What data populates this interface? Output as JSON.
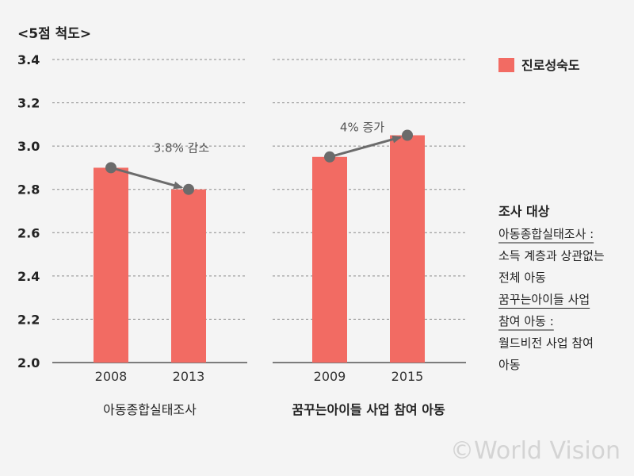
{
  "chart_data": {
    "type": "bar",
    "unit_label": "<5점 척도>",
    "ylim": [
      2.0,
      3.4
    ],
    "yticks": [
      "2.0",
      "2.2",
      "2.4",
      "2.6",
      "2.8",
      "3.0",
      "3.2",
      "3.4"
    ],
    "grid": true,
    "legend": {
      "placement": "top-right",
      "entries": [
        {
          "name": "진로성숙도",
          "color": "#f26b63"
        }
      ]
    },
    "groups": [
      {
        "label": "아동종합실태조사",
        "categories": [
          "2008",
          "2013"
        ],
        "values": [
          2.9,
          2.8
        ],
        "annotation": "3.8% 감소"
      },
      {
        "label": "꿈꾸는아이들 사업 참여 아동",
        "categories": [
          "2009",
          "2015"
        ],
        "values": [
          2.95,
          3.05
        ],
        "annotation": "4% 증가"
      }
    ]
  },
  "note": {
    "title": "조사 대상",
    "lines": [
      "아동종합실태조사 :",
      "소득 계층과 상관없는",
      "전체 아동",
      "꿈꾸는아이들 사업",
      "참여 아동 :",
      "월드비전 사업 참여",
      "아동"
    ]
  },
  "watermark": "©World Vision",
  "colors": {
    "bar": "#f26b63",
    "trend": "#6b6b6b",
    "grid": "#8a8a8a"
  }
}
